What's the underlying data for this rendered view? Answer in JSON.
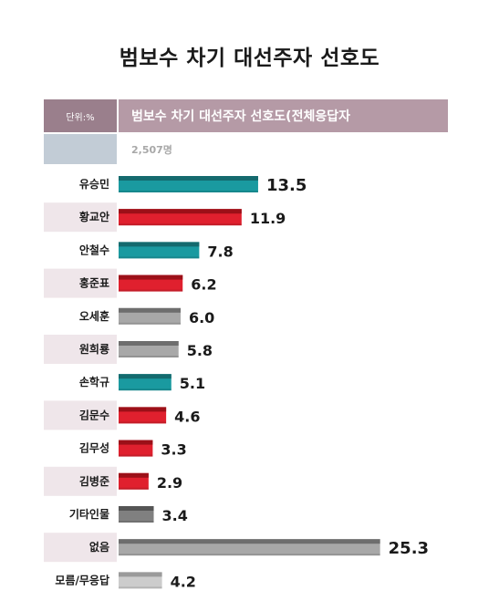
{
  "title": "범보수 차기 대선주자 선호도",
  "header": {
    "unit": "단위:%",
    "label": "범보수 차기 대선주자 선호도(전체응답자",
    "sample": "2,507명"
  },
  "colors": {
    "teal": "#1a9aa0",
    "red": "#e0202e",
    "gray": "#9e9e9e",
    "darkgray": "#7a7a7a",
    "lightgray": "#c8c8c8"
  },
  "chart_data": {
    "type": "bar",
    "orientation": "horizontal",
    "title": "범보수 차기 대선주자 선호도",
    "categories": [
      "유승민",
      "황교안",
      "안철수",
      "홍준표",
      "오세훈",
      "원희룡",
      "손학규",
      "김문수",
      "김무성",
      "김병준",
      "기타인물",
      "없음",
      "모름/무응답"
    ],
    "values": [
      13.5,
      11.9,
      7.8,
      6.2,
      6.0,
      5.8,
      5.1,
      4.6,
      3.3,
      2.9,
      3.4,
      25.3,
      4.2
    ],
    "value_labels": [
      "13.5",
      "11.9",
      "7.8",
      "6.2",
      "6.0",
      "5.8",
      "5.1",
      "4.6",
      "3.3",
      "2.9",
      "3.4",
      "25.3",
      "4.2"
    ],
    "bar_colors": [
      "teal",
      "red",
      "teal",
      "red",
      "gray",
      "gray",
      "teal",
      "red",
      "red",
      "red",
      "darkgray",
      "gray",
      "lightgray"
    ],
    "unit": "%"
  }
}
